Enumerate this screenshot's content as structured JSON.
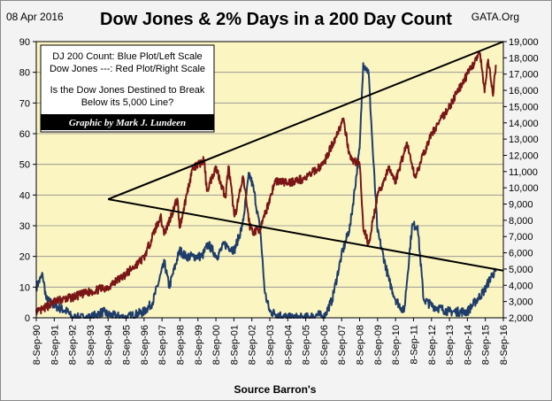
{
  "header": {
    "date": "08 Apr 2016",
    "title": "Dow Jones & 2% Days in a 200 Day Count",
    "source_tag": "GATA.Org"
  },
  "legend": {
    "line1": "DJ 200 Count: Blue Plot/Left Scale",
    "line2": "Dow Jones ---: Red Plot/Right Scale",
    "line3": "Is the Dow Jones Destined to Break",
    "line4": "Below its 5,000 Line?",
    "credit": "Graphic by Mark J. Lundeen"
  },
  "colors": {
    "plot_bg": "#fbf5c2",
    "count_line": "#1f3d6b",
    "dow_line": "#7a1616",
    "trend_line": "#000000",
    "credit_bg": "#000000"
  },
  "chart_data": {
    "type": "line",
    "title": "Dow Jones & 2% Days in a 200 Day Count",
    "xlabel": "Source Barron's",
    "x_ticks": [
      "8-Sep-90",
      "8-Sep-91",
      "8-Sep-92",
      "8-Sep-93",
      "8-Sep-94",
      "8-Sep-95",
      "8-Sep-96",
      "8-Sep-97",
      "8-Sep-98",
      "8-Sep-99",
      "8-Sep-00",
      "8-Sep-01",
      "8-Sep-02",
      "8-Sep-03",
      "8-Sep-04",
      "8-Sep-05",
      "8-Sep-06",
      "8-Sep-07",
      "8-Sep-08",
      "8-Sep-09",
      "8-Sep-10",
      "8-Sep-11",
      "8-Sep-12",
      "8-Sep-13",
      "8-Sep-14",
      "8-Sep-15",
      "8-Sep-16"
    ],
    "xlim": [
      "1990-09-08",
      "2016-09-08"
    ],
    "left_axis": {
      "ylim": [
        0,
        90
      ],
      "ticks": [
        0,
        10,
        20,
        30,
        40,
        50,
        60,
        70,
        80,
        90
      ],
      "tick_labels": [
        "0",
        "10",
        "20",
        "30",
        "40",
        "50",
        "60",
        "70",
        "80",
        "90"
      ]
    },
    "right_axis": {
      "ylim": [
        2000,
        19000
      ],
      "ticks": [
        2000,
        3000,
        4000,
        5000,
        6000,
        7000,
        8000,
        9000,
        10000,
        11000,
        12000,
        13000,
        14000,
        15000,
        16000,
        17000,
        18000,
        19000
      ],
      "tick_labels": [
        "2,000",
        "3,000",
        "4,000",
        "5,000",
        "6,000",
        "7,000",
        "8,000",
        "9,000",
        "10,000",
        "11,000",
        "12,000",
        "13,000",
        "14,000",
        "15,000",
        "16,000",
        "17,000",
        "18,000",
        "19,000"
      ]
    },
    "grid": true,
    "series": [
      {
        "name": "DJ 200 Count",
        "axis": "left",
        "points": [
          [
            "1990-09-08",
            10
          ],
          [
            "1991-01-15",
            14
          ],
          [
            "1991-04-01",
            6
          ],
          [
            "1991-09-08",
            4
          ],
          [
            "1992-06-01",
            2
          ],
          [
            "1992-09-08",
            0
          ],
          [
            "1993-09-08",
            0
          ],
          [
            "1994-06-01",
            2
          ],
          [
            "1994-09-08",
            1
          ],
          [
            "1995-09-08",
            0
          ],
          [
            "1996-09-08",
            2
          ],
          [
            "1997-03-01",
            5
          ],
          [
            "1997-10-27",
            18
          ],
          [
            "1998-02-01",
            10
          ],
          [
            "1998-09-01",
            22
          ],
          [
            "1999-01-01",
            20
          ],
          [
            "1999-06-01",
            20
          ],
          [
            "1999-12-01",
            20
          ],
          [
            "2000-04-01",
            24
          ],
          [
            "2000-10-01",
            20
          ],
          [
            "2001-03-01",
            24
          ],
          [
            "2001-09-17",
            22
          ],
          [
            "2002-03-01",
            30
          ],
          [
            "2002-07-15",
            47
          ],
          [
            "2002-10-15",
            42
          ],
          [
            "2003-03-01",
            28
          ],
          [
            "2003-06-01",
            8
          ],
          [
            "2003-09-08",
            2
          ],
          [
            "2004-09-08",
            0
          ],
          [
            "2005-09-08",
            0
          ],
          [
            "2006-06-01",
            1
          ],
          [
            "2006-09-08",
            0
          ],
          [
            "2007-03-01",
            6
          ],
          [
            "2007-09-01",
            20
          ],
          [
            "2008-03-01",
            30
          ],
          [
            "2008-09-08",
            55
          ],
          [
            "2008-11-20",
            83
          ],
          [
            "2009-03-09",
            80
          ],
          [
            "2009-06-01",
            55
          ],
          [
            "2009-09-08",
            28
          ],
          [
            "2010-05-01",
            12
          ],
          [
            "2010-09-08",
            6
          ],
          [
            "2011-03-01",
            2
          ],
          [
            "2011-08-10",
            30
          ],
          [
            "2011-12-01",
            30
          ],
          [
            "2012-04-01",
            6
          ],
          [
            "2012-09-08",
            4
          ],
          [
            "2013-09-08",
            2
          ],
          [
            "2014-09-08",
            2
          ],
          [
            "2015-08-24",
            9
          ],
          [
            "2016-01-20",
            14
          ],
          [
            "2016-04-08",
            15
          ]
        ]
      },
      {
        "name": "Dow Jones",
        "axis": "right",
        "points": [
          [
            "1990-09-08",
            2500
          ],
          [
            "1990-10-11",
            2365
          ],
          [
            "1991-01-16",
            2500
          ],
          [
            "1991-09-08",
            3000
          ],
          [
            "1992-09-08",
            3250
          ],
          [
            "1993-09-08",
            3600
          ],
          [
            "1994-09-08",
            3900
          ],
          [
            "1995-09-08",
            4700
          ],
          [
            "1996-09-08",
            5700
          ],
          [
            "1997-08-06",
            8250
          ],
          [
            "1997-10-27",
            7160
          ],
          [
            "1998-07-17",
            9340
          ],
          [
            "1998-08-31",
            7540
          ],
          [
            "1999-05-13",
            11100
          ],
          [
            "2000-01-14",
            11720
          ],
          [
            "2000-03-07",
            9800
          ],
          [
            "2000-09-08",
            11300
          ],
          [
            "2001-03-22",
            9390
          ],
          [
            "2001-05-21",
            11340
          ],
          [
            "2001-09-21",
            8230
          ],
          [
            "2002-03-19",
            10630
          ],
          [
            "2002-07-23",
            7700
          ],
          [
            "2002-10-09",
            7280
          ],
          [
            "2003-03-11",
            7520
          ],
          [
            "2003-12-31",
            10450
          ],
          [
            "2004-09-08",
            10300
          ],
          [
            "2005-09-08",
            10600
          ],
          [
            "2006-09-08",
            11500
          ],
          [
            "2007-10-09",
            14160
          ],
          [
            "2008-03-10",
            11740
          ],
          [
            "2008-09-08",
            11500
          ],
          [
            "2008-11-20",
            7550
          ],
          [
            "2009-03-09",
            6550
          ],
          [
            "2009-09-08",
            9500
          ],
          [
            "2010-04-26",
            11200
          ],
          [
            "2010-09-08",
            10400
          ],
          [
            "2011-04-29",
            12800
          ],
          [
            "2011-10-03",
            10650
          ],
          [
            "2012-09-08",
            13300
          ],
          [
            "2013-09-08",
            15000
          ],
          [
            "2014-09-08",
            17000
          ],
          [
            "2015-05-19",
            18310
          ],
          [
            "2015-08-24",
            15870
          ],
          [
            "2015-11-03",
            17900
          ],
          [
            "2016-02-11",
            15660
          ],
          [
            "2016-04-08",
            17570
          ]
        ]
      }
    ],
    "trend_lines": [
      {
        "axis": "right",
        "from": [
          "1994-09-08",
          9300
        ],
        "to": [
          "2016-09-08",
          19000
        ]
      },
      {
        "axis": "right",
        "from": [
          "1994-09-08",
          9300
        ],
        "to": [
          "2016-09-08",
          4900
        ]
      }
    ]
  }
}
